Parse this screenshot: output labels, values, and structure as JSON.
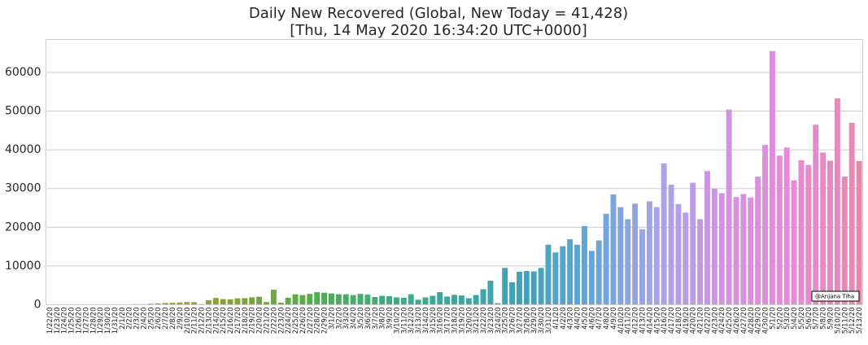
{
  "chart_data": {
    "type": "bar",
    "title_line1": "Daily New Recovered (Global, New Today = 41,428)",
    "title_line2": "[Thu, 14 May 2020 16:34:20 UTC+0000]",
    "xlabel": "",
    "ylabel": "",
    "ylim": [
      0,
      68500
    ],
    "yticks": [
      0,
      10000,
      20000,
      30000,
      40000,
      50000,
      60000
    ],
    "grid": true,
    "watermark": "@Anjana Tiha",
    "palette": [
      "#cd7f7f",
      "#c88a3a",
      "#a59a32",
      "#79a637",
      "#4fae4e",
      "#3bac82",
      "#3aa8a0",
      "#3ea3b8",
      "#63a5d8",
      "#a7a4e6",
      "#d391e2",
      "#e68ad8",
      "#e58aae"
    ],
    "categories": [
      "1/22/20",
      "1/23/20",
      "1/24/20",
      "1/25/20",
      "1/26/20",
      "1/27/20",
      "1/28/20",
      "1/29/20",
      "1/30/20",
      "1/31/20",
      "2/1/20",
      "2/2/20",
      "2/3/20",
      "2/4/20",
      "2/5/20",
      "2/6/20",
      "2/7/20",
      "2/8/20",
      "2/9/20",
      "2/10/20",
      "2/11/20",
      "2/12/20",
      "2/13/20",
      "2/14/20",
      "2/15/20",
      "2/16/20",
      "2/17/20",
      "2/18/20",
      "2/19/20",
      "2/20/20",
      "2/21/20",
      "2/22/20",
      "2/23/20",
      "2/24/20",
      "2/25/20",
      "2/26/20",
      "2/27/20",
      "2/28/20",
      "2/29/20",
      "3/1/20",
      "3/2/20",
      "3/3/20",
      "3/4/20",
      "3/5/20",
      "3/6/20",
      "3/7/20",
      "3/8/20",
      "3/9/20",
      "3/10/20",
      "3/11/20",
      "3/12/20",
      "3/13/20",
      "3/14/20",
      "3/15/20",
      "3/16/20",
      "3/17/20",
      "3/18/20",
      "3/19/20",
      "3/20/20",
      "3/21/20",
      "3/22/20",
      "3/23/20",
      "3/24/20",
      "3/25/20",
      "3/26/20",
      "3/27/20",
      "3/28/20",
      "3/29/20",
      "3/30/20",
      "3/31/20",
      "4/1/20",
      "4/2/20",
      "4/3/20",
      "4/4/20",
      "4/5/20",
      "4/6/20",
      "4/7/20",
      "4/8/20",
      "4/9/20",
      "4/10/20",
      "4/11/20",
      "4/12/20",
      "4/13/20",
      "4/14/20",
      "4/15/20",
      "4/16/20",
      "4/17/20",
      "4/18/20",
      "4/19/20",
      "4/20/20",
      "4/21/20",
      "4/22/20",
      "4/23/20",
      "4/24/20",
      "4/25/20",
      "4/26/20",
      "4/27/20",
      "4/28/20",
      "4/29/20",
      "4/30/20",
      "5/1/20",
      "5/2/20",
      "5/3/20",
      "5/4/20",
      "5/5/20",
      "5/6/20",
      "5/7/20",
      "5/8/20",
      "5/9/20",
      "5/10/20",
      "5/11/20",
      "5/12/20",
      "5/13/20"
    ],
    "x_tick_labels": [
      "1/22/20",
      "1/23/20",
      "1/24/20",
      "1/25/20",
      "1/26/20",
      "1/27/20",
      "1/28/20",
      "1/29/20",
      "1/30/20",
      "1/31/20",
      "2/1/20",
      "2/2/20",
      "2/3/20",
      "2/4/20",
      "2/5/20",
      "2/6/20",
      "2/7/20",
      "2/8/20",
      "2/9/20",
      "2/10/20",
      "2/11/20",
      "2/12/20",
      "2/13/20",
      "2/14/20",
      "2/15/20",
      "2/16/20",
      "2/17/20",
      "2/18/20",
      "2/19/20",
      "2/20/20",
      "2/21/20",
      "2/22/20",
      "2/23/20",
      "2/24/20",
      "2/25/20",
      "2/26/20",
      "2/27/20",
      "2/28/20",
      "2/29/20",
      "3/1/20",
      "3/2/20",
      "3/3/20",
      "3/4/20",
      "3/5/20",
      "3/6/20",
      "3/7/20",
      "3/8/20",
      "3/9/20",
      "3/10/20",
      "3/11/20",
      "3/12/20",
      "3/13/20",
      "3/14/20",
      "3/15/20",
      "3/16/20",
      "3/17/20",
      "3/18/20",
      "3/19/20",
      "3/20/20",
      "3/21/20",
      "3/22/20",
      "3/23/20",
      "3/24/20",
      "3/25/20",
      "3/26/20",
      "3/27/20",
      "3/28/20",
      "3/29/20",
      "3/30/20",
      "3/31/20",
      "4/1/20",
      "4/2/20",
      "4/3/20",
      "4/4/20",
      "4/5/20",
      "4/6/20",
      "4/7/20",
      "4/8/20",
      "4/9/20",
      "4/10/20",
      "4/11/20",
      "4/12/20",
      "4/13/20",
      "4/14/20",
      "4/15/20",
      "4/16/20",
      "4/17/20",
      "4/18/20",
      "4/19/20",
      "4/20/20",
      "4/21/20",
      "4/22/20",
      "4/23/20",
      "4/24/20",
      "4/25/20",
      "4/26/20",
      "4/27/20",
      "4/28/20",
      "4/29/20",
      "4/30/20",
      "5/1/20",
      "5/2/20",
      "5/3/20",
      "5/4/20",
      "5/5/20",
      "5/6/20",
      "5/7/20",
      "5/8/20",
      "5/9/20",
      "5/10/20",
      "5/11/20",
      "5/12/20",
      "5/13/20"
    ],
    "values": [
      0,
      9,
      6,
      7,
      14,
      3,
      45,
      23,
      19,
      51,
      67,
      110,
      140,
      150,
      258,
      310,
      460,
      500,
      580,
      690,
      650,
      150,
      1150,
      1750,
      1450,
      1400,
      1650,
      1700,
      1900,
      2050,
      700,
      3900,
      550,
      1800,
      2700,
      2500,
      2800,
      3250,
      3100,
      2900,
      2700,
      2700,
      2500,
      2800,
      2600,
      2000,
      2300,
      2200,
      1900,
      1800,
      2700,
      1300,
      1900,
      2300,
      3250,
      2100,
      2550,
      2400,
      1700,
      2500,
      4000,
      6200,
      400,
      9500,
      5800,
      8500,
      8700,
      8600,
      9500,
      15500,
      13500,
      15100,
      16900,
      15500,
      20300,
      13900,
      16600,
      23500,
      28500,
      25200,
      22100,
      26100,
      19500,
      26700,
      25200,
      36500,
      31000,
      26000,
      23800,
      31500,
      22100,
      34500,
      30000,
      28800,
      50400,
      27800,
      28600,
      27700,
      33100,
      41300,
      65500,
      38500,
      40600,
      32100,
      37300,
      36100,
      46500,
      39300,
      37200,
      53300,
      33100,
      47000,
      37100
    ]
  }
}
